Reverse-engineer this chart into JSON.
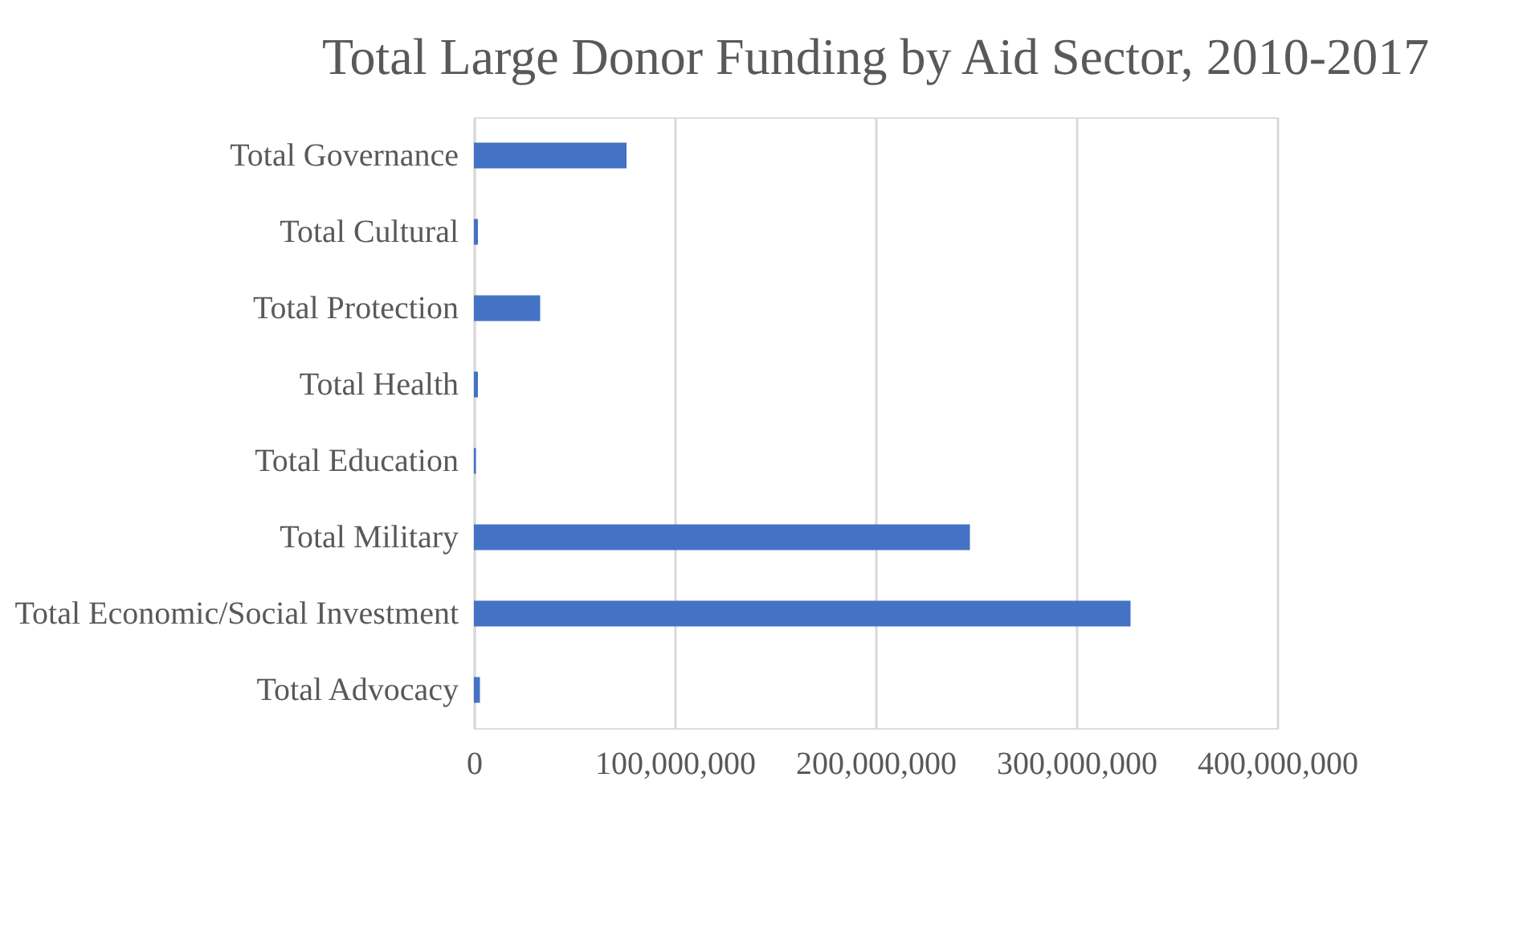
{
  "chart_data": {
    "type": "bar",
    "orientation": "horizontal",
    "title": "Total Large Donor Funding by Aid Sector, 2010-2017",
    "categories": [
      "Total Governance",
      "Total Cultural",
      "Total Protection",
      "Total Health",
      "Total Education",
      "Total Military",
      "Total Economic/Social Investment",
      "Total Advocacy"
    ],
    "values": [
      76000000,
      2000000,
      33000000,
      2000000,
      1000000,
      247000000,
      327000000,
      3000000
    ],
    "color": "#4472c4",
    "xlim": [
      0,
      400000000
    ],
    "xticks": [
      {
        "value": 0,
        "label": "0"
      },
      {
        "value": 100000000,
        "label": "100,000,000"
      },
      {
        "value": 200000000,
        "label": "200,000,000"
      },
      {
        "value": 300000000,
        "label": "300,000,000"
      },
      {
        "value": 400000000,
        "label": "400,000,000"
      }
    ],
    "grid": "x"
  }
}
